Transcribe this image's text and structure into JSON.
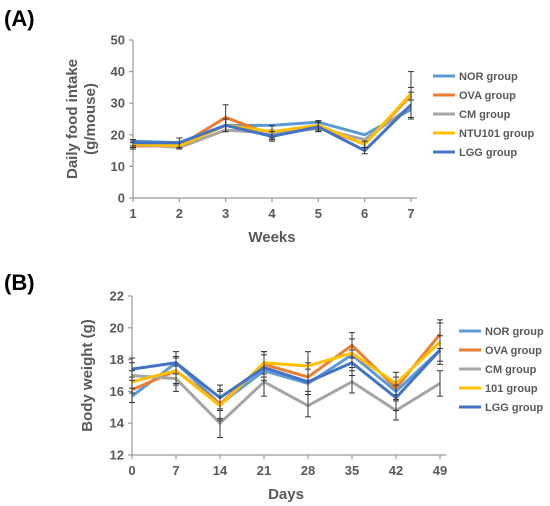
{
  "panels": [
    {
      "label": "(A)"
    },
    {
      "label": "(B)"
    }
  ],
  "chart_data": [
    {
      "type": "line",
      "panel": "(A)",
      "title": "",
      "xlabel": "Weeks",
      "ylabel": "Daily food intake\n(g/mouse)",
      "x": [
        1,
        2,
        3,
        4,
        5,
        6,
        7
      ],
      "xticks": [
        "1",
        "2",
        "3",
        "4",
        "5",
        "6",
        "7"
      ],
      "ylim": [
        0,
        50
      ],
      "yticks": [
        0,
        10,
        20,
        30,
        40,
        50
      ],
      "grid": false,
      "legend_position": "right",
      "series": [
        {
          "name": "NOR group",
          "color": "#5b9bd5",
          "values": [
            18,
            17.5,
            23,
            23,
            24,
            20,
            28
          ]
        },
        {
          "name": "OVA group",
          "color": "#ed7d31",
          "values": [
            16.5,
            16.5,
            25.5,
            20,
            22.5,
            17,
            32.5
          ],
          "error": [
            1,
            1,
            4,
            1.5,
            1.5,
            1.5,
            7.5
          ]
        },
        {
          "name": "CM group",
          "color": "#a5a5a5",
          "values": [
            17,
            16,
            21.5,
            20.5,
            22,
            18.5,
            29
          ]
        },
        {
          "name": "NTU101 group",
          "color": "#ffc000",
          "values": [
            17,
            16.5,
            23,
            21,
            23,
            17,
            33
          ],
          "error": [
            1,
            1,
            2,
            2,
            1.5,
            1,
            2
          ]
        },
        {
          "name": "LGG group",
          "color": "#4472c4",
          "values": [
            17.5,
            17.5,
            23,
            19.5,
            22.5,
            15,
            29.5
          ],
          "error": [
            1,
            1.5,
            2,
            1.5,
            1.5,
            1,
            4
          ]
        }
      ]
    },
    {
      "type": "line",
      "panel": "(B)",
      "title": "",
      "xlabel": "Days",
      "ylabel": "Body weight (g)",
      "x": [
        0,
        7,
        14,
        21,
        28,
        35,
        42,
        49
      ],
      "xticks": [
        "0",
        "7",
        "14",
        "21",
        "28",
        "35",
        "42",
        "49"
      ],
      "ylim": [
        12,
        22
      ],
      "yticks": [
        12,
        14,
        16,
        18,
        20,
        22
      ],
      "grid": false,
      "legend_position": "right",
      "series": [
        {
          "name": "NOR group",
          "color": "#5b9bd5",
          "values": [
            15.7,
            17.8,
            15.2,
            17.3,
            16.5,
            18.3,
            16,
            18.6
          ]
        },
        {
          "name": "OVA group",
          "color": "#ed7d31",
          "values": [
            16.1,
            17.3,
            15.2,
            17.7,
            16.9,
            18.9,
            16.2,
            19.6
          ],
          "error": [
            0.8,
            0.9,
            0.9,
            0.8,
            0.9,
            0.8,
            0.7,
            0.9
          ]
        },
        {
          "name": "CM group",
          "color": "#a5a5a5",
          "values": [
            17,
            16.8,
            14,
            16.6,
            15.1,
            16.6,
            14.8,
            16.5
          ],
          "error": [
            0.8,
            0.8,
            0.9,
            0.9,
            0.7,
            0.7,
            0.6,
            0.8
          ]
        },
        {
          "name": "101 group",
          "color": "#ffc000",
          "values": [
            16.6,
            17.3,
            15.1,
            17.8,
            17.6,
            18.4,
            16.5,
            19.1
          ],
          "error": [
            0.7,
            0.8,
            0.9,
            0.7,
            0.9,
            0.9,
            0.7,
            1.2
          ]
        },
        {
          "name": "LGG group",
          "color": "#4472c4",
          "values": [
            17.4,
            17.8,
            15.6,
            17.5,
            16.6,
            17.8,
            15.6,
            18.6
          ],
          "error": [
            0.7,
            0.7,
            0.8,
            0.8,
            0.8,
            0.8,
            0.8,
            0.9
          ]
        }
      ]
    }
  ]
}
